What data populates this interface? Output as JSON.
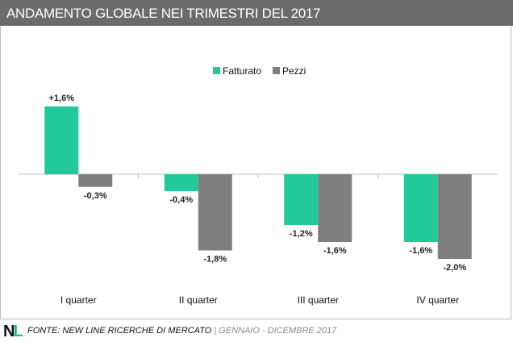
{
  "header": {
    "title": "ANDAMENTO GLOBALE NEI TRIMESTRI DEL 2017"
  },
  "colors": {
    "fatturato": "#22c99b",
    "pezzi": "#7f7f7f",
    "header_bg": "#6b6b6b"
  },
  "chart_data": {
    "type": "bar",
    "title": "",
    "xlabel": "",
    "ylabel": "",
    "categories": [
      "I quarter",
      "II quarter",
      "III quarter",
      "IV quarter"
    ],
    "series": [
      {
        "name": "Fatturato",
        "values": [
          1.6,
          -0.4,
          -1.2,
          -1.6
        ],
        "labels": [
          "+1,6%",
          "-0,4%",
          "-1,2%",
          "-1,6%"
        ]
      },
      {
        "name": "Pezzi",
        "values": [
          -0.3,
          -1.8,
          -1.6,
          -2.0
        ],
        "labels": [
          "-0,3%",
          "-1,8%",
          "-1,6%",
          "-2,0%"
        ]
      }
    ],
    "ylim": [
      -2.5,
      2.5
    ],
    "legend_position": "top-center",
    "grid": false
  },
  "footer": {
    "logo": "NL",
    "source_label": "FONTE:",
    "source_name": "NEW LINE RICERCHE DI MERCATO",
    "separator": "|",
    "period": "GENNAIO - DICEMBRE 2017"
  }
}
